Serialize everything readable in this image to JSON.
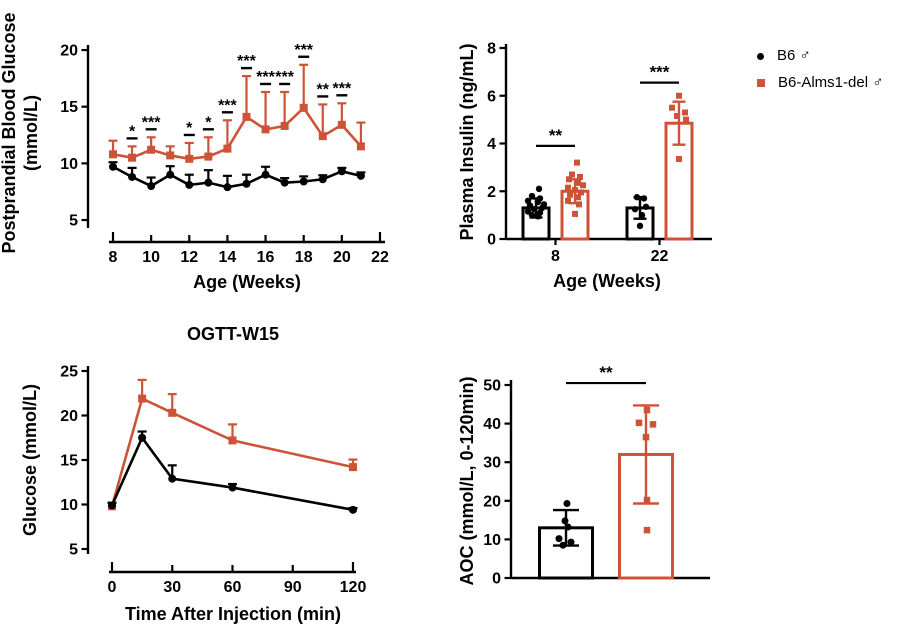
{
  "colors": {
    "b6": "#000000",
    "alms1": "#cd5338",
    "text": "#000000",
    "background": "#ffffff"
  },
  "legend": {
    "position": "top-right",
    "items": [
      {
        "label": "B6 ♂",
        "marker": "circle",
        "color": "#000000"
      },
      {
        "label": "B6-Alms1-del ♂",
        "marker": "square",
        "color": "#cd5338"
      }
    ]
  },
  "chart_data": [
    {
      "id": "postprandial",
      "type": "line",
      "title": "",
      "xlabel": "Age (Weeks)",
      "ylabel_lines": [
        "Postprandial Blood Glucose",
        "(mmol/L)"
      ],
      "xlim": [
        8,
        22
      ],
      "ylim": [
        5,
        20
      ],
      "xticks": [
        8,
        10,
        12,
        14,
        16,
        18,
        20,
        22
      ],
      "yticks": [
        5,
        10,
        15,
        20
      ],
      "grid": false,
      "x": [
        8,
        9,
        10,
        11,
        12,
        13,
        14,
        15,
        16,
        17,
        18,
        19,
        20,
        21
      ],
      "series": [
        {
          "name": "B6 ♂",
          "color": "#000000",
          "marker": "circle",
          "values": [
            9.7,
            8.8,
            8.0,
            9.0,
            8.1,
            8.3,
            7.9,
            8.2,
            9.0,
            8.3,
            8.4,
            8.6,
            9.3,
            8.9
          ],
          "err_up": [
            0.4,
            0.8,
            0.75,
            0.75,
            0.9,
            1.1,
            1.0,
            0.8,
            0.7,
            0.4,
            0.45,
            0.35,
            0.3,
            0.3
          ]
        },
        {
          "name": "B6-Alms1-del ♂",
          "color": "#cd5338",
          "marker": "square",
          "values": [
            10.8,
            10.5,
            11.2,
            10.7,
            10.4,
            10.6,
            11.3,
            14.1,
            13.0,
            13.3,
            14.9,
            12.4,
            13.4,
            11.5
          ],
          "err_up": [
            1.2,
            1.0,
            1.1,
            0.8,
            1.4,
            1.7,
            2.5,
            3.6,
            3.3,
            3.0,
            3.8,
            2.8,
            1.9,
            2.1
          ]
        }
      ],
      "significance": [
        {
          "x": 9,
          "label": "*"
        },
        {
          "x": 10,
          "label": "***"
        },
        {
          "x": 12,
          "label": "*"
        },
        {
          "x": 13,
          "label": "*"
        },
        {
          "x": 14,
          "label": "***"
        },
        {
          "x": 15,
          "label": "***"
        },
        {
          "x": 16,
          "label": "***"
        },
        {
          "x": 17,
          "label": "***"
        },
        {
          "x": 18,
          "label": "***"
        },
        {
          "x": 19,
          "label": "**"
        },
        {
          "x": 20,
          "label": "***"
        }
      ]
    },
    {
      "id": "insulin",
      "type": "bar",
      "title": "",
      "xlabel": "Age (Weeks)",
      "ylabel": "Plasma Insulin (ng/mL)",
      "ylim": [
        0,
        8
      ],
      "yticks": [
        0,
        2,
        4,
        6,
        8
      ],
      "grid": false,
      "groups": [
        {
          "label": "8",
          "bars": [
            {
              "series": "B6 ♂",
              "color": "#000000",
              "marker": "circle",
              "mean": 1.3,
              "sd": 0.4,
              "points": [
                2.1,
                1.8,
                1.7,
                1.6,
                1.55,
                1.45,
                1.4,
                1.3,
                1.25,
                1.15,
                1.1,
                1.0,
                0.95
              ],
              "dx": [
                3,
                -4,
                4,
                -8,
                2,
                8,
                -6,
                6,
                -2,
                -8,
                4,
                -4,
                2
              ]
            },
            {
              "series": "B6-Alms1-del ♂",
              "color": "#cd5338",
              "marker": "square",
              "mean": 2.0,
              "sd": 0.5,
              "points": [
                3.2,
                2.7,
                2.6,
                2.5,
                2.35,
                2.25,
                2.15,
                2.05,
                1.95,
                1.85,
                1.75,
                1.6,
                1.45,
                1.05
              ],
              "dx": [
                2,
                -3,
                5,
                -6,
                3,
                8,
                -7,
                0,
                6,
                -5,
                3,
                -7,
                4,
                0
              ]
            }
          ]
        },
        {
          "label": "22",
          "bars": [
            {
              "series": "B6 ♂",
              "color": "#000000",
              "marker": "circle",
              "mean": 1.3,
              "sd": 0.45,
              "points": [
                1.75,
                1.7,
                1.35,
                1.25,
                1.0,
                0.55
              ],
              "dx": [
                -3,
                4,
                6,
                -5,
                2,
                0
              ]
            },
            {
              "series": "B6-Alms1-del ♂",
              "color": "#cd5338",
              "marker": "square",
              "mean": 4.85,
              "sd": 0.9,
              "points": [
                6.0,
                5.5,
                5.3,
                5.15,
                5.0,
                3.35
              ],
              "dx": [
                0,
                -7,
                6,
                -2,
                7,
                0
              ]
            }
          ]
        }
      ],
      "significance": [
        {
          "group": 0,
          "label": "**",
          "y": 3.9
        },
        {
          "group": 1,
          "label": "***",
          "y": 6.55
        }
      ]
    },
    {
      "id": "ogtt",
      "type": "line",
      "title": "OGTT-W15",
      "xlabel": "Time After Injection (min)",
      "ylabel_lines": [
        "Glucose (mmol/L)"
      ],
      "xlim": [
        0,
        120
      ],
      "ylim": [
        5,
        25
      ],
      "xticks": [
        0,
        30,
        60,
        90,
        120
      ],
      "yticks": [
        5,
        10,
        15,
        20,
        25
      ],
      "grid": false,
      "x": [
        0,
        15,
        30,
        60,
        120
      ],
      "series": [
        {
          "name": "B6 ♂",
          "color": "#000000",
          "marker": "circle",
          "values": [
            9.9,
            17.5,
            12.9,
            11.9,
            9.4
          ],
          "err_up": [
            0.3,
            0.7,
            1.5,
            0.4,
            0.2
          ]
        },
        {
          "name": "B6-Alms1-del ♂",
          "color": "#cd5338",
          "marker": "square",
          "values": [
            9.8,
            21.9,
            20.3,
            17.2,
            14.2
          ],
          "err_up": [
            0.4,
            2.1,
            2.1,
            1.8,
            0.85
          ]
        }
      ],
      "significance": []
    },
    {
      "id": "aoc",
      "type": "bar",
      "title": "",
      "xlabel": "",
      "ylabel": "AOC (mmol/L, 0-120min)",
      "ylim": [
        0,
        50
      ],
      "yticks": [
        0,
        10,
        20,
        30,
        40,
        50
      ],
      "grid": false,
      "groups": [
        {
          "label": "",
          "bars": [
            {
              "series": "B6 ♂",
              "color": "#000000",
              "marker": "circle",
              "mean": 13.0,
              "sd": 4.6,
              "points": [
                19.3,
                14.8,
                13.2,
                10.2,
                9.3,
                8.5
              ],
              "dx": [
                1,
                -1,
                2,
                -7,
                5,
                -3
              ]
            },
            {
              "series": "B6-Alms1-del ♂",
              "color": "#cd5338",
              "marker": "square",
              "mean": 32.0,
              "sd": 12.7,
              "points": [
                43.5,
                40.2,
                39.8,
                36.5,
                20.2,
                12.4
              ],
              "dx": [
                1,
                -7,
                7,
                0,
                1,
                1
              ]
            }
          ]
        }
      ],
      "significance": [
        {
          "group": 0,
          "label": "**",
          "y": 50.5
        }
      ]
    }
  ]
}
